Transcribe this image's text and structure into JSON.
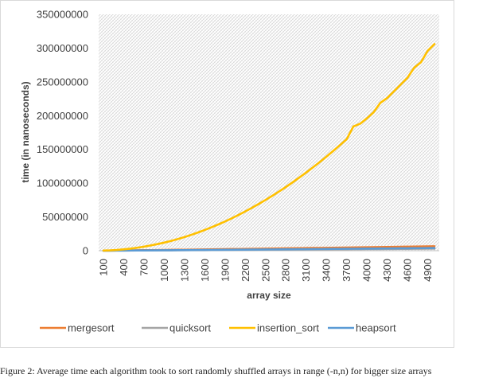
{
  "caption": "Figure 2: Average time each algorithm took to sort randomly shuffled arrays in range (-n,n) for bigger size arrays",
  "chart_data": {
    "type": "line",
    "title": "",
    "xlabel": "array size",
    "ylabel": "time (in nanoseconds)",
    "ylim": [
      0,
      350000000
    ],
    "y_ticks": [
      "0",
      "50000000",
      "100000000",
      "150000000",
      "200000000",
      "250000000",
      "300000000",
      "350000000"
    ],
    "x_ticks": [
      "100",
      "400",
      "700",
      "1000",
      "1300",
      "1600",
      "1900",
      "2200",
      "2500",
      "2800",
      "3100",
      "3400",
      "3700",
      "4000",
      "4300",
      "4600",
      "4900"
    ],
    "x": [
      100,
      200,
      300,
      400,
      500,
      600,
      700,
      800,
      900,
      1000,
      1100,
      1200,
      1300,
      1400,
      1500,
      1600,
      1700,
      1800,
      1900,
      2000,
      2100,
      2200,
      2300,
      2400,
      2500,
      2600,
      2700,
      2800,
      2900,
      3000,
      3100,
      3200,
      3300,
      3400,
      3500,
      3600,
      3700,
      3800,
      3900,
      4000,
      4100,
      4200,
      4300,
      4400,
      4500,
      4600,
      4700,
      4800,
      4900,
      5000
    ],
    "grid": "hatched plot area",
    "legend_position": "bottom",
    "series": [
      {
        "name": "mergesort",
        "color": "#ED7D31",
        "values": [
          90000,
          200000,
          300000,
          400000,
          520000,
          630000,
          750000,
          870000,
          990000,
          1110000,
          1240000,
          1360000,
          1480000,
          1600000,
          1730000,
          1860000,
          1990000,
          2120000,
          2250000,
          2380000,
          2510000,
          2640000,
          2770000,
          2910000,
          3040000,
          3180000,
          3310000,
          3450000,
          3590000,
          3730000,
          3860000,
          4000000,
          4140000,
          4280000,
          4420000,
          4560000,
          4700000,
          4840000,
          4980000,
          5120000,
          5270000,
          5410000,
          5550000,
          5700000,
          5840000,
          5990000,
          6130000,
          6280000,
          6420000,
          6570000
        ]
      },
      {
        "name": "quicksort",
        "color": "#A5A5A5",
        "values": [
          40000,
          90000,
          140000,
          190000,
          240000,
          290000,
          350000,
          400000,
          460000,
          510000,
          570000,
          630000,
          680000,
          740000,
          800000,
          860000,
          920000,
          980000,
          1040000,
          1100000,
          1160000,
          1220000,
          1280000,
          1340000,
          1400000,
          1460000,
          1520000,
          1590000,
          1650000,
          1710000,
          1770000,
          1840000,
          1900000,
          1960000,
          2030000,
          2090000,
          2150000,
          2220000,
          2280000,
          2350000,
          2410000,
          2470000,
          2540000,
          2600000,
          2670000,
          2730000,
          2800000,
          2860000,
          2930000,
          3000000
        ]
      },
      {
        "name": "insertion_sort",
        "color": "#FFC000",
        "values": [
          200000,
          500000,
          1100000,
          2000000,
          3000000,
          4400000,
          6000000,
          7800000,
          9800000,
          12000000,
          14500000,
          17300000,
          20200000,
          23500000,
          27000000,
          30700000,
          34700000,
          38900000,
          43300000,
          48000000,
          53000000,
          58200000,
          63600000,
          69300000,
          75200000,
          81300000,
          87700000,
          94300000,
          101200000,
          108300000,
          115700000,
          123300000,
          131100000,
          139200000,
          147600000,
          156200000,
          165000000,
          184000000,
          188000000,
          196000000,
          205000000,
          219000000,
          226000000,
          236000000,
          246000000,
          256000000,
          271000000,
          279000000,
          296000000,
          306000000
        ]
      },
      {
        "name": "heapsort",
        "color": "#5B9BD5",
        "values": [
          50000,
          100000,
          160000,
          230000,
          290000,
          360000,
          430000,
          500000,
          570000,
          640000,
          720000,
          790000,
          870000,
          940000,
          1020000,
          1100000,
          1180000,
          1260000,
          1340000,
          1420000,
          1500000,
          1580000,
          1660000,
          1740000,
          1830000,
          1910000,
          1990000,
          2080000,
          2160000,
          2250000,
          2330000,
          2420000,
          2500000,
          2590000,
          2680000,
          2760000,
          2850000,
          2940000,
          3030000,
          3120000,
          3210000,
          3300000,
          3390000,
          3480000,
          3570000,
          3660000,
          3750000,
          3840000,
          3930000,
          4020000
        ]
      }
    ]
  }
}
